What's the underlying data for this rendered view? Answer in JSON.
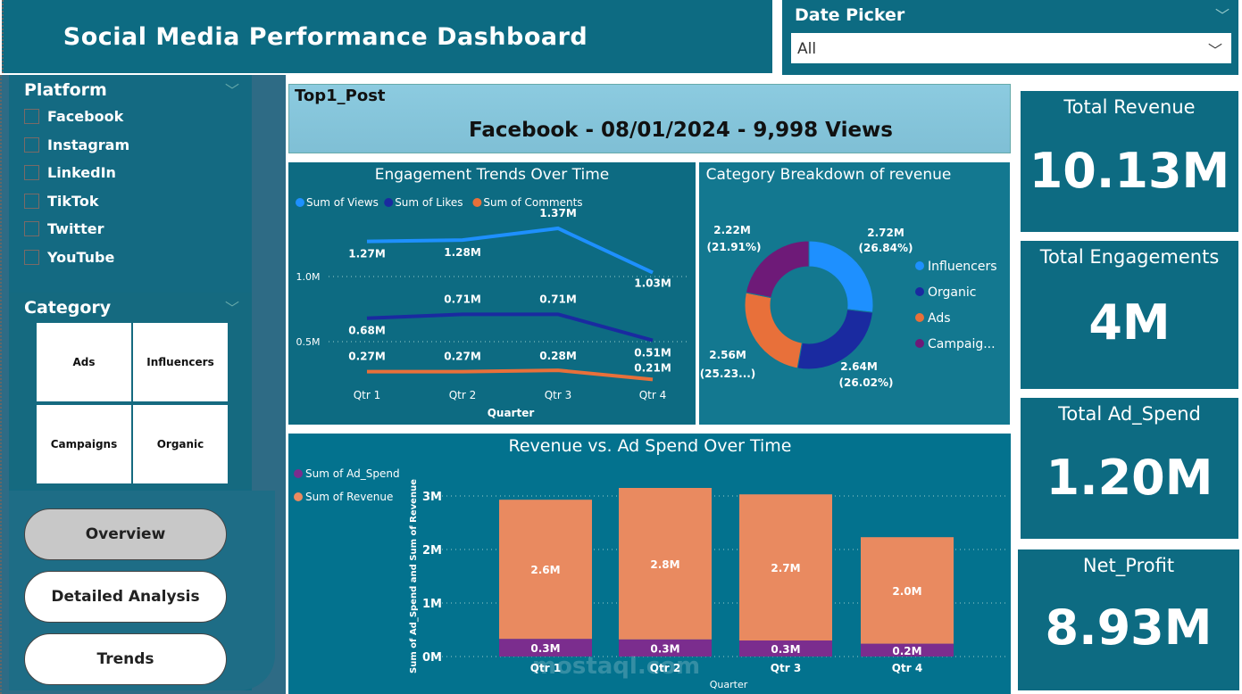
{
  "header": {
    "title": "Social Media Performance Dashboard"
  },
  "date_picker": {
    "label": "Date Picker",
    "value": "All"
  },
  "platform_filter": {
    "label": "Platform",
    "items": [
      "Facebook",
      "Instagram",
      "LinkedIn",
      "TikTok",
      "Twitter",
      "YouTube"
    ]
  },
  "category_filter": {
    "label": "Category",
    "tiles": [
      "Ads",
      "Influencers",
      "Campaigns",
      "Organic"
    ]
  },
  "nav": {
    "buttons": [
      "Overview",
      "Detailed Analysis",
      "Trends"
    ],
    "active": "Overview"
  },
  "top_post": {
    "label": "Top1_Post",
    "value": "Facebook - 08/01/2024 - 9,998 Views"
  },
  "kpis": [
    {
      "title": "Total Revenue",
      "value": "10.13M"
    },
    {
      "title": "Total Engagements",
      "value": "4M"
    },
    {
      "title": "Total Ad_Spend",
      "value": "1.20M"
    },
    {
      "title": "Net_Profit",
      "value": "8.93M"
    }
  ],
  "chart_data": [
    {
      "type": "line",
      "title": "Engagement Trends Over Time",
      "xlabel": "Quarter",
      "categories": [
        "Qtr 1",
        "Qtr 2",
        "Qtr 3",
        "Qtr 4"
      ],
      "yticks": [
        "0.5M",
        "1.0M"
      ],
      "legend_position": "top-left",
      "series": [
        {
          "name": "Sum of Views",
          "color": "#1e90ff",
          "values": [
            1.27,
            1.28,
            1.37,
            1.03
          ],
          "labels": [
            "1.27M",
            "1.28M",
            "1.37M",
            "1.03M"
          ]
        },
        {
          "name": "Sum of Likes",
          "color": "#1a2aa0",
          "values": [
            0.68,
            0.71,
            0.71,
            0.51
          ],
          "labels": [
            "0.68M",
            "0.71M",
            "0.71M",
            "0.51M"
          ]
        },
        {
          "name": "Sum of Comments",
          "color": "#e8703a",
          "values": [
            0.27,
            0.27,
            0.28,
            0.21
          ],
          "labels": [
            "0.27M",
            "0.27M",
            "0.28M",
            "0.21M"
          ]
        }
      ]
    },
    {
      "type": "pie",
      "title": "Category Breakdown of revenue",
      "legend_position": "right",
      "slices": [
        {
          "name": "Influencers",
          "legend": "Influencers",
          "value": 2.72,
          "label": "2.72M",
          "pct": "(26.84%)",
          "color": "#1e90ff"
        },
        {
          "name": "Organic",
          "legend": "Organic",
          "value": 2.64,
          "label": "2.64M",
          "pct": "(26.02%)",
          "color": "#1a2aa0"
        },
        {
          "name": "Ads",
          "legend": "Ads",
          "value": 2.56,
          "label": "2.56M",
          "pct": "(25.23...)",
          "color": "#e8703a"
        },
        {
          "name": "Campaigns",
          "legend": "Campaig...",
          "value": 2.22,
          "label": "2.22M",
          "pct": "(21.91%)",
          "color": "#6e1a78"
        }
      ]
    },
    {
      "type": "bar",
      "stacked": true,
      "title": "Revenue vs. Ad Spend Over Time",
      "xlabel": "Quarter",
      "ylabel": "Sum of Ad_Spend and Sum of Revenue",
      "categories": [
        "Qtr 1",
        "Qtr 2",
        "Qtr 3",
        "Qtr 4"
      ],
      "yticks": [
        "0M",
        "1M",
        "2M",
        "3M"
      ],
      "ylim": [
        0,
        3.2
      ],
      "legend_position": "left",
      "series": [
        {
          "name": "Sum of Ad_Spend",
          "color": "#7b2d8e",
          "values": [
            0.33,
            0.32,
            0.3,
            0.24
          ],
          "labels": [
            "0.3M",
            "0.3M",
            "0.3M",
            "0.2M"
          ]
        },
        {
          "name": "Sum of Revenue",
          "color": "#e98a60",
          "values": [
            2.6,
            2.83,
            2.73,
            1.99
          ],
          "labels": [
            "2.6M",
            "2.8M",
            "2.7M",
            "2.0M"
          ]
        }
      ]
    }
  ],
  "watermark": "mostaql.com"
}
